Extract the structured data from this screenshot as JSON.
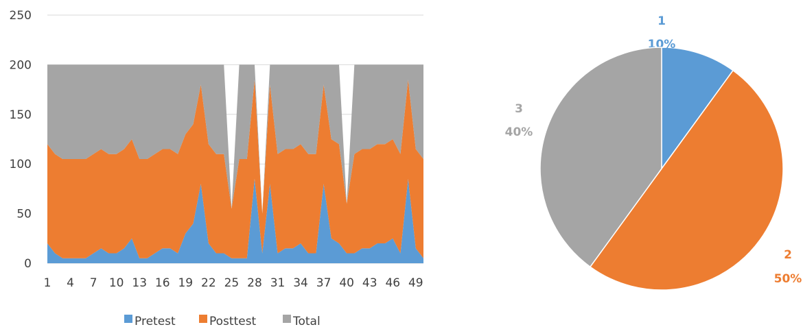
{
  "chart_data": [
    {
      "type": "area",
      "stacked": true,
      "x": [
        1,
        2,
        3,
        4,
        5,
        6,
        7,
        8,
        9,
        10,
        11,
        12,
        13,
        14,
        15,
        16,
        17,
        18,
        19,
        20,
        21,
        22,
        23,
        24,
        25,
        26,
        27,
        28,
        29,
        30,
        31,
        32,
        33,
        34,
        35,
        36,
        37,
        38,
        39,
        40,
        41,
        42,
        43,
        44,
        45,
        46,
        47,
        48,
        49,
        50
      ],
      "x_ticks": [
        "1",
        "4",
        "7",
        "10",
        "13",
        "16",
        "19",
        "22",
        "25",
        "28",
        "31",
        "34",
        "37",
        "40",
        "43",
        "46",
        "49"
      ],
      "y_ticks": [
        "0",
        "50",
        "100",
        "150",
        "200",
        "250"
      ],
      "ylim": [
        0,
        250
      ],
      "grid": true,
      "legend": "bottom",
      "series": [
        {
          "name": "Pretest",
          "color": "#5B9BD5",
          "values": [
            20,
            10,
            5,
            5,
            5,
            5,
            10,
            15,
            10,
            10,
            15,
            25,
            5,
            5,
            10,
            15,
            15,
            10,
            30,
            40,
            80,
            20,
            10,
            10,
            5,
            5,
            5,
            85,
            10,
            80,
            10,
            15,
            15,
            20,
            10,
            10,
            80,
            25,
            20,
            10,
            10,
            15,
            15,
            20,
            20,
            25,
            10,
            85,
            15,
            5
          ]
        },
        {
          "name": "Posttest",
          "color": "#ED7D31",
          "values": [
            100,
            100,
            100,
            100,
            100,
            100,
            100,
            100,
            100,
            100,
            100,
            100,
            100,
            100,
            100,
            100,
            100,
            100,
            100,
            100,
            100,
            100,
            100,
            100,
            50,
            100,
            100,
            100,
            40,
            100,
            100,
            100,
            100,
            100,
            100,
            100,
            100,
            100,
            100,
            50,
            100,
            100,
            100,
            100,
            100,
            100,
            100,
            100,
            100,
            100
          ]
        },
        {
          "name": "Total",
          "color": "#A5A5A5",
          "values": [
            80,
            90,
            95,
            95,
            95,
            95,
            90,
            85,
            90,
            90,
            85,
            75,
            95,
            95,
            90,
            85,
            85,
            90,
            70,
            60,
            20,
            80,
            90,
            90,
            0,
            95,
            95,
            15,
            0,
            20,
            90,
            85,
            85,
            80,
            90,
            90,
            20,
            75,
            80,
            0,
            90,
            85,
            85,
            80,
            80,
            75,
            90,
            15,
            85,
            95
          ]
        }
      ]
    },
    {
      "type": "pie",
      "slices": [
        {
          "label": "1",
          "pct": "10%",
          "value": 10,
          "color": "#5B9BD5"
        },
        {
          "label": "2",
          "pct": "50%",
          "value": 50,
          "color": "#ED7D31"
        },
        {
          "label": "3",
          "pct": "40%",
          "value": 40,
          "color": "#A5A5A5"
        }
      ]
    }
  ]
}
